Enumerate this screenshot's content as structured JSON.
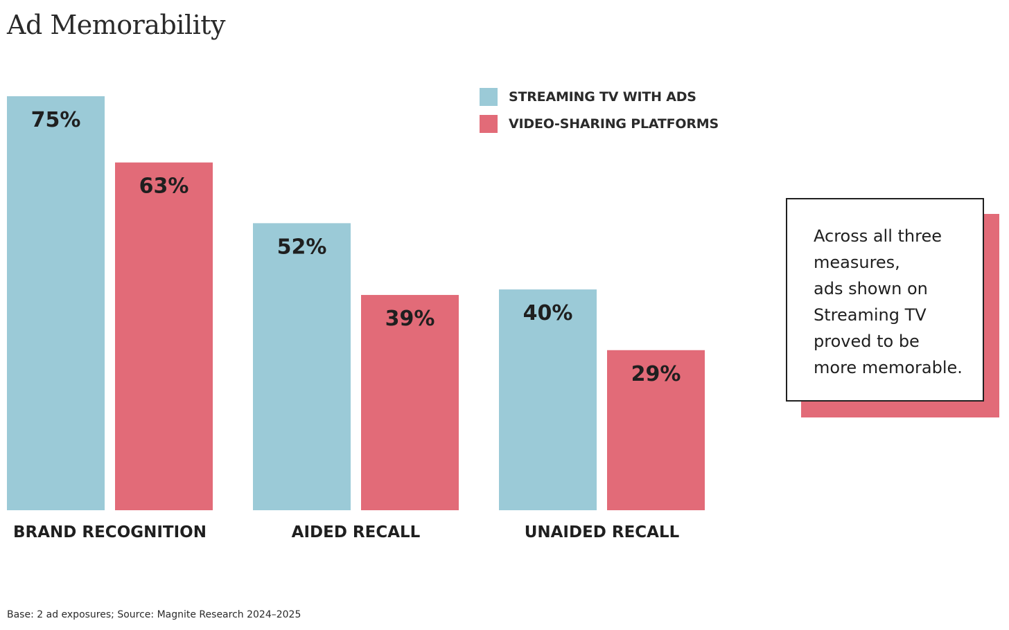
{
  "chart_data": {
    "type": "bar",
    "title": "Ad Memorability",
    "categories": [
      "BRAND RECOGNITION",
      "AIDED RECALL",
      "UNAIDED RECALL"
    ],
    "series": [
      {
        "name": "STREAMING TV WITH ADS",
        "values": [
          75,
          52,
          40
        ],
        "labels": [
          "75%",
          "52%",
          "40%"
        ],
        "color": "#9bcad7"
      },
      {
        "name": "VIDEO-SHARING PLATFORMS",
        "values": [
          63,
          39,
          29
        ],
        "labels": [
          "63%",
          "39%",
          "29%"
        ],
        "color": "#e26b78"
      }
    ],
    "unit": "%",
    "ylim": [
      0,
      75
    ],
    "grid": false,
    "legend": "top-right"
  },
  "callout": {
    "lines": [
      "Across all three",
      "measures,",
      "ads shown on",
      "Streaming TV",
      "proved to be",
      "more memorable."
    ],
    "accent_color": "#e26b78"
  },
  "footnote": "Base: 2 ad exposures; Source: Magnite Research 2024–2025"
}
